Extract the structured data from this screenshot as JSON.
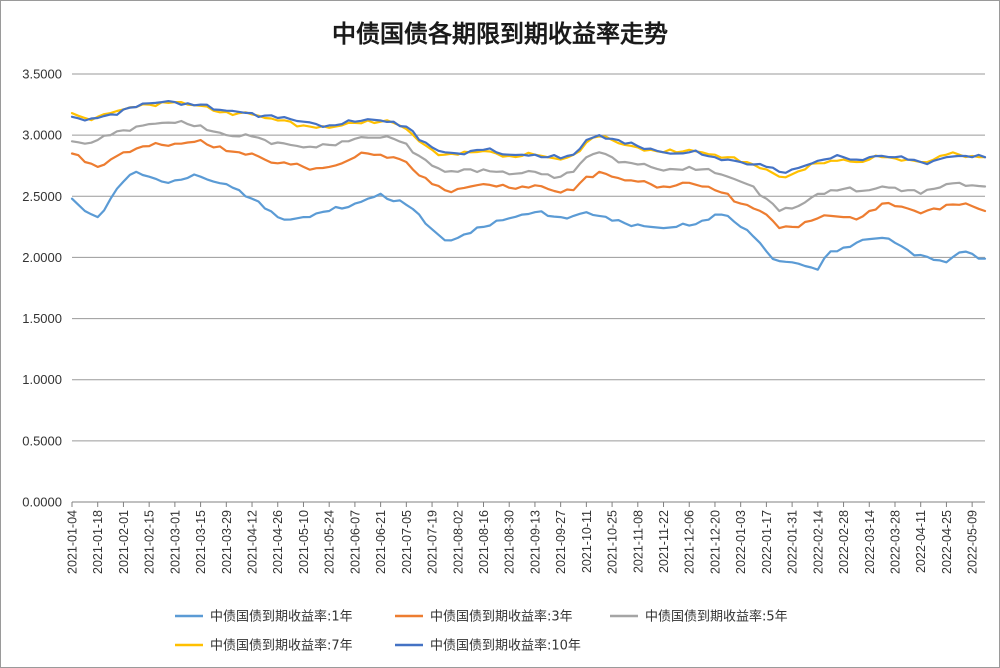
{
  "chart_data": {
    "type": "line",
    "title": "中债国债各期限到期收益率走势",
    "xlabel": "",
    "ylabel": "",
    "ylim": [
      0,
      3.5
    ],
    "yticks": [
      "0.0000",
      "0.5000",
      "1.0000",
      "1.5000",
      "2.0000",
      "2.5000",
      "3.0000",
      "3.5000"
    ],
    "grid": true,
    "legend_position": "bottom",
    "x_ticks": [
      "2021-01-04",
      "2021-01-18",
      "2021-02-01",
      "2021-02-15",
      "2021-03-01",
      "2021-03-15",
      "2021-03-29",
      "2021-04-12",
      "2021-04-26",
      "2021-05-10",
      "2021-05-24",
      "2021-06-07",
      "2021-06-21",
      "2021-07-05",
      "2021-07-19",
      "2021-08-02",
      "2021-08-16",
      "2021-08-30",
      "2021-09-13",
      "2021-09-27",
      "2021-10-11",
      "2021-10-25",
      "2021-11-08",
      "2021-11-22",
      "2021-12-06",
      "2021-12-20",
      "2022-01-03",
      "2022-01-17",
      "2022-01-31",
      "2022-02-14",
      "2022-02-28",
      "2022-03-14",
      "2022-03-28",
      "2022-04-11",
      "2022-04-25",
      "2022-05-09"
    ],
    "x": [
      "2021-01-04",
      "2021-01-11",
      "2021-01-18",
      "2021-01-25",
      "2021-02-01",
      "2021-02-08",
      "2021-02-15",
      "2021-02-22",
      "2021-03-01",
      "2021-03-08",
      "2021-03-15",
      "2021-03-22",
      "2021-03-29",
      "2021-04-05",
      "2021-04-12",
      "2021-04-19",
      "2021-04-26",
      "2021-05-03",
      "2021-05-10",
      "2021-05-17",
      "2021-05-24",
      "2021-05-31",
      "2021-06-07",
      "2021-06-14",
      "2021-06-21",
      "2021-06-28",
      "2021-07-05",
      "2021-07-12",
      "2021-07-19",
      "2021-07-26",
      "2021-08-02",
      "2021-08-09",
      "2021-08-16",
      "2021-08-23",
      "2021-08-30",
      "2021-09-06",
      "2021-09-13",
      "2021-09-20",
      "2021-09-27",
      "2021-10-04",
      "2021-10-11",
      "2021-10-18",
      "2021-10-25",
      "2021-11-01",
      "2021-11-08",
      "2021-11-15",
      "2021-11-22",
      "2021-11-29",
      "2021-12-06",
      "2021-12-13",
      "2021-12-20",
      "2021-12-27",
      "2022-01-03",
      "2022-01-10",
      "2022-01-17",
      "2022-01-24",
      "2022-01-31",
      "2022-02-07",
      "2022-02-14",
      "2022-02-21",
      "2022-02-28",
      "2022-03-07",
      "2022-03-14",
      "2022-03-21",
      "2022-03-28",
      "2022-04-04",
      "2022-04-11",
      "2022-04-18",
      "2022-04-25",
      "2022-05-02",
      "2022-05-09",
      "2022-05-16"
    ],
    "series": [
      {
        "name": "中债国债到期收益率:1年",
        "color": "#5B9BD5",
        "values": [
          2.48,
          2.38,
          2.33,
          2.48,
          2.62,
          2.7,
          2.66,
          2.62,
          2.63,
          2.65,
          2.66,
          2.62,
          2.6,
          2.55,
          2.48,
          2.4,
          2.33,
          2.31,
          2.33,
          2.36,
          2.38,
          2.4,
          2.44,
          2.48,
          2.52,
          2.46,
          2.43,
          2.35,
          2.23,
          2.14,
          2.16,
          2.2,
          2.25,
          2.3,
          2.32,
          2.35,
          2.37,
          2.34,
          2.33,
          2.34,
          2.37,
          2.34,
          2.3,
          2.28,
          2.27,
          2.25,
          2.24,
          2.25,
          2.26,
          2.3,
          2.35,
          2.34,
          2.25,
          2.17,
          2.05,
          1.97,
          1.96,
          1.93,
          1.9,
          2.05,
          2.08,
          2.12,
          2.15,
          2.16,
          2.12,
          2.06,
          2.02,
          1.98,
          1.96,
          2.04,
          2.03,
          1.99
        ]
      },
      {
        "name": "中债国债到期收益率:3年",
        "color": "#ED7D31",
        "values": [
          2.85,
          2.78,
          2.74,
          2.8,
          2.86,
          2.89,
          2.91,
          2.92,
          2.93,
          2.94,
          2.96,
          2.9,
          2.87,
          2.86,
          2.85,
          2.8,
          2.77,
          2.76,
          2.74,
          2.73,
          2.74,
          2.77,
          2.82,
          2.85,
          2.84,
          2.82,
          2.78,
          2.67,
          2.6,
          2.55,
          2.56,
          2.58,
          2.6,
          2.58,
          2.57,
          2.58,
          2.59,
          2.56,
          2.53,
          2.55,
          2.66,
          2.7,
          2.66,
          2.63,
          2.62,
          2.6,
          2.58,
          2.59,
          2.61,
          2.58,
          2.55,
          2.52,
          2.44,
          2.4,
          2.35,
          2.24,
          2.25,
          2.29,
          2.32,
          2.34,
          2.33,
          2.31,
          2.38,
          2.44,
          2.42,
          2.4,
          2.36,
          2.4,
          2.43,
          2.43,
          2.42,
          2.38
        ]
      },
      {
        "name": "中债国债到期收益率:5年",
        "color": "#A5A5A5",
        "values": [
          2.95,
          2.93,
          2.96,
          3.0,
          3.04,
          3.07,
          3.09,
          3.1,
          3.1,
          3.09,
          3.08,
          3.03,
          3.0,
          2.99,
          2.99,
          2.96,
          2.94,
          2.92,
          2.9,
          2.9,
          2.92,
          2.95,
          2.97,
          2.98,
          2.98,
          2.97,
          2.93,
          2.83,
          2.75,
          2.7,
          2.7,
          2.72,
          2.72,
          2.7,
          2.68,
          2.69,
          2.7,
          2.68,
          2.66,
          2.7,
          2.82,
          2.86,
          2.82,
          2.78,
          2.76,
          2.74,
          2.71,
          2.72,
          2.74,
          2.72,
          2.69,
          2.66,
          2.62,
          2.58,
          2.48,
          2.38,
          2.4,
          2.45,
          2.52,
          2.55,
          2.56,
          2.54,
          2.55,
          2.58,
          2.57,
          2.55,
          2.52,
          2.56,
          2.6,
          2.61,
          2.59,
          2.58
        ]
      },
      {
        "name": "中债国债到期收益率:7年",
        "color": "#FFC000",
        "values": [
          3.18,
          3.14,
          3.15,
          3.18,
          3.21,
          3.23,
          3.25,
          3.27,
          3.27,
          3.25,
          3.24,
          3.2,
          3.19,
          3.18,
          3.17,
          3.14,
          3.12,
          3.11,
          3.08,
          3.06,
          3.06,
          3.08,
          3.1,
          3.12,
          3.11,
          3.1,
          3.05,
          2.95,
          2.88,
          2.84,
          2.84,
          2.86,
          2.87,
          2.85,
          2.83,
          2.83,
          2.84,
          2.82,
          2.8,
          2.84,
          2.94,
          2.99,
          2.96,
          2.92,
          2.9,
          2.88,
          2.86,
          2.86,
          2.88,
          2.86,
          2.84,
          2.82,
          2.78,
          2.76,
          2.72,
          2.66,
          2.68,
          2.72,
          2.77,
          2.79,
          2.8,
          2.78,
          2.8,
          2.82,
          2.81,
          2.8,
          2.78,
          2.8,
          2.84,
          2.84,
          2.83,
          2.82
        ]
      },
      {
        "name": "中债国债到期收益率:10年",
        "color": "#4472C4",
        "values": [
          3.15,
          3.12,
          3.14,
          3.17,
          3.21,
          3.23,
          3.26,
          3.27,
          3.27,
          3.26,
          3.25,
          3.21,
          3.2,
          3.19,
          3.18,
          3.16,
          3.14,
          3.13,
          3.11,
          3.09,
          3.08,
          3.09,
          3.11,
          3.13,
          3.12,
          3.11,
          3.07,
          2.96,
          2.9,
          2.86,
          2.85,
          2.87,
          2.88,
          2.86,
          2.84,
          2.84,
          2.84,
          2.82,
          2.81,
          2.84,
          2.96,
          3.0,
          2.97,
          2.93,
          2.91,
          2.89,
          2.86,
          2.85,
          2.86,
          2.84,
          2.82,
          2.8,
          2.78,
          2.76,
          2.74,
          2.7,
          2.72,
          2.75,
          2.79,
          2.81,
          2.82,
          2.8,
          2.82,
          2.83,
          2.82,
          2.8,
          2.78,
          2.79,
          2.82,
          2.83,
          2.82,
          2.82
        ]
      }
    ]
  }
}
